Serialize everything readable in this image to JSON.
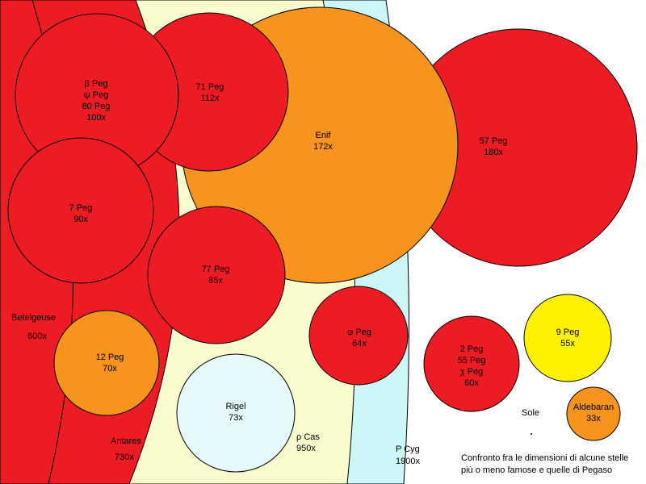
{
  "colors": {
    "red": "#ed1c24",
    "orange": "#f7941d",
    "yellow": "#fff200",
    "pale_yellow": "#f9fccc",
    "pale_cyan": "#ccf6f8",
    "rigel": "#e6fafb",
    "outline": "#000000",
    "background": "#ffffff"
  },
  "caption": {
    "line1": "Confronto fra le dimensioni di alcune stelle",
    "line2": "più o meno famose e quelle di Pegaso"
  },
  "large_stars": {
    "p_cyg": {
      "name": "P Cyg",
      "size": "1900x"
    },
    "rho_cas": {
      "name": "ρ Cas",
      "size": "950x"
    },
    "antares": {
      "name": "Antares",
      "size": "730x"
    },
    "betelgeuse": {
      "name": "Betelgeuse",
      "size": "600x"
    }
  },
  "stars": {
    "s57_peg": {
      "lines": [
        "57 Peg"
      ],
      "size": "180x"
    },
    "enif": {
      "lines": [
        "Enif"
      ],
      "size": "172x"
    },
    "s71_peg": {
      "lines": [
        "71 Peg"
      ],
      "size": "112x"
    },
    "beta_peg": {
      "lines": [
        "β Peg",
        "ψ Peg",
        "80 Peg"
      ],
      "size": "100x"
    },
    "s7_peg": {
      "lines": [
        "7 Peg"
      ],
      "size": "90x"
    },
    "s77_peg": {
      "lines": [
        "77 Peg"
      ],
      "size": "85x"
    },
    "rigel": {
      "lines": [
        "Rigel"
      ],
      "size": "73x"
    },
    "s12_peg": {
      "lines": [
        "12 Peg"
      ],
      "size": "70x"
    },
    "phi_peg": {
      "lines": [
        "φ Peg"
      ],
      "size": "64x"
    },
    "s2_peg": {
      "lines": [
        "2 Peg",
        "55 Peg",
        "χ Peg"
      ],
      "size": "60x"
    },
    "s9_peg": {
      "lines": [
        "9 Peg"
      ],
      "size": "55x"
    },
    "aldebaran": {
      "lines": [
        "Aldebaran"
      ],
      "size": "33x"
    }
  },
  "sole": {
    "name": "Sole"
  }
}
